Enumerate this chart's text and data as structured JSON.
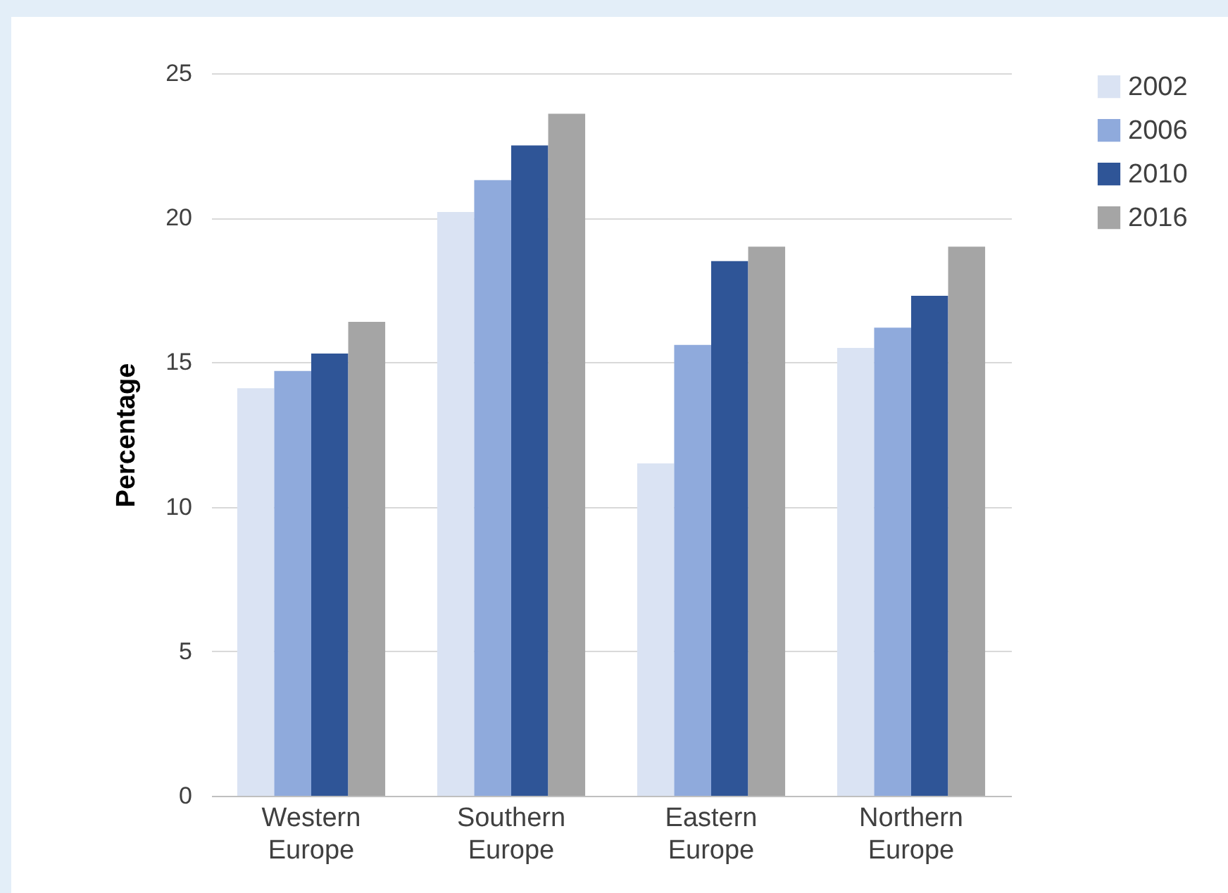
{
  "chart_data": {
    "type": "bar",
    "ylabel": "Percentage",
    "categories": [
      "Western Europe",
      "Southern Europe",
      "Eastern Europe",
      "Northern Europe"
    ],
    "series": [
      {
        "name": "2002",
        "color": "#dae3f3",
        "values": [
          14.1,
          20.2,
          11.5,
          15.5
        ]
      },
      {
        "name": "2006",
        "color": "#8faadc",
        "values": [
          14.7,
          21.3,
          15.6,
          16.2
        ]
      },
      {
        "name": "2010",
        "color": "#2f5597",
        "values": [
          15.3,
          22.5,
          18.5,
          17.3
        ]
      },
      {
        "name": "2016",
        "color": "#a5a5a5",
        "values": [
          16.4,
          23.6,
          19.0,
          19.0
        ]
      }
    ],
    "ylim": [
      0,
      25
    ],
    "yticks": [
      0,
      5,
      10,
      15,
      20,
      25
    ],
    "grid": "y",
    "legend": "right"
  }
}
